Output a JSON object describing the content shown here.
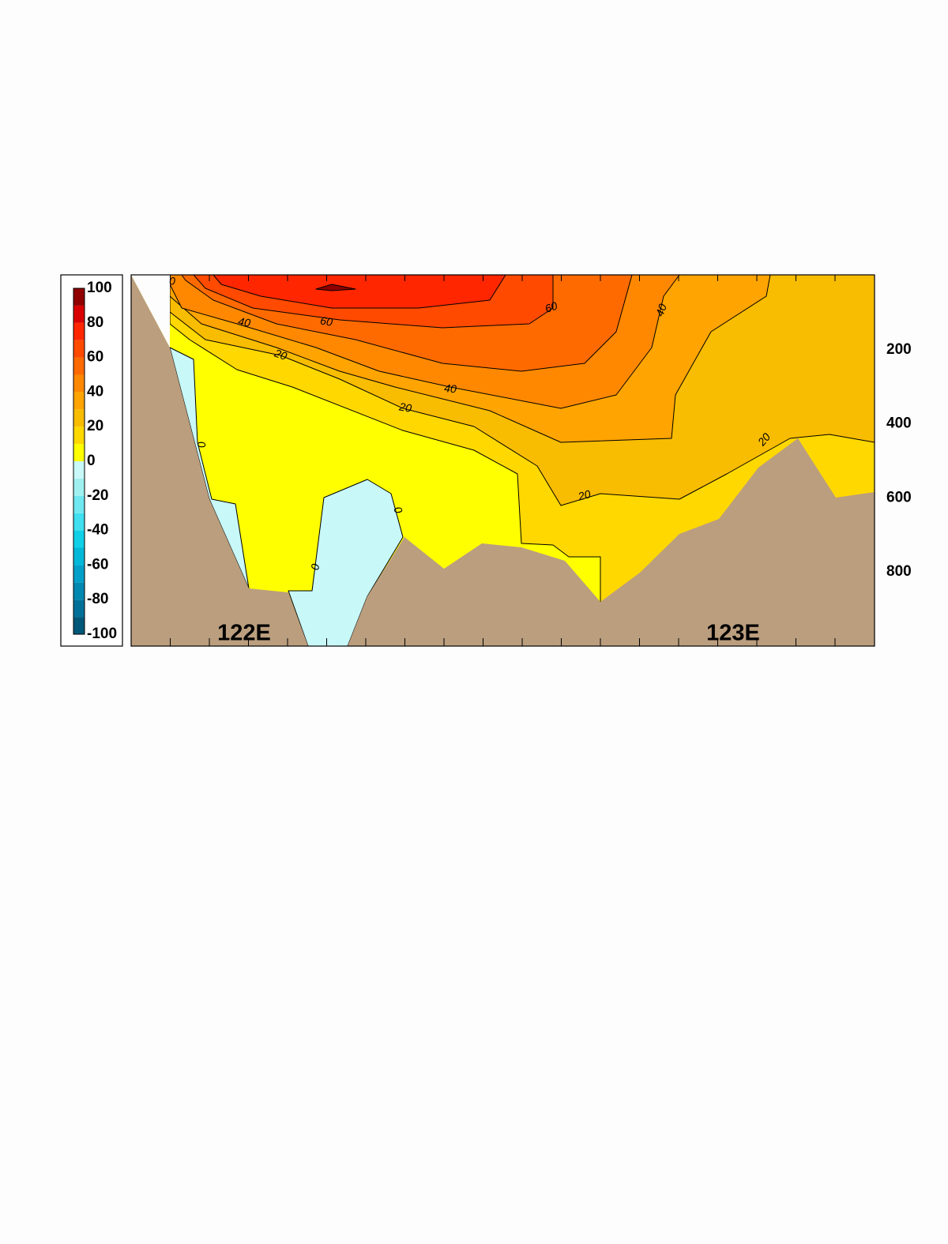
{
  "chart_data": {
    "type": "contour",
    "x_labels": [
      "122E",
      "123E"
    ],
    "ylim": [
      0,
      1000
    ],
    "yticks": [
      200,
      400,
      600,
      800
    ],
    "colorbar": {
      "levels": [
        -100,
        -90,
        -80,
        -70,
        -60,
        -50,
        -40,
        -30,
        -20,
        -10,
        0,
        10,
        20,
        30,
        40,
        50,
        60,
        70,
        80,
        90,
        100
      ],
      "colors": [
        "#005878",
        "#007098",
        "#0088b0",
        "#00a0c8",
        "#00b8d8",
        "#10d0e8",
        "#40e0f0",
        "#70e8f0",
        "#a0f0f0",
        "#c8f8f8",
        "#ffff00",
        "#ffd800",
        "#f8bc00",
        "#ffa400",
        "#ff8800",
        "#ff6a00",
        "#ff4a00",
        "#ff2600",
        "#d80000",
        "#900000"
      ],
      "ticks": [
        100,
        80,
        60,
        40,
        20,
        0,
        -20,
        -40,
        -60,
        -80,
        -100
      ]
    },
    "contour_labels": [
      0,
      40,
      60,
      20,
      60,
      40,
      40,
      20,
      20,
      20,
      0,
      0,
      0
    ]
  }
}
